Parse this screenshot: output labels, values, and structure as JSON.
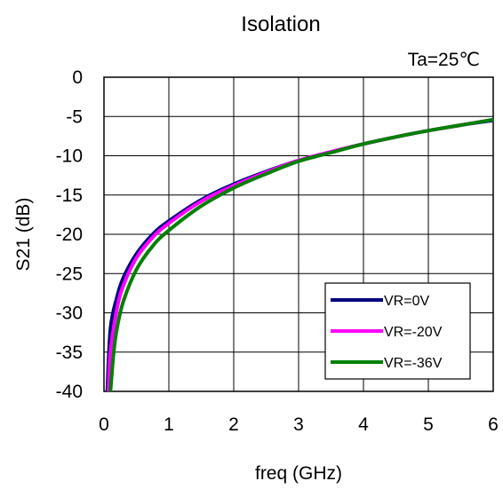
{
  "chart_data": {
    "type": "line",
    "title": "Isolation",
    "annotation": "Ta=25℃",
    "xlabel": "freq (GHz)",
    "ylabel": "S21 (dB)",
    "xlim": [
      0,
      6
    ],
    "ylim": [
      -40,
      0
    ],
    "xticks": [
      0,
      1,
      2,
      3,
      4,
      5,
      6
    ],
    "yticks": [
      0,
      -5,
      -10,
      -15,
      -20,
      -25,
      -30,
      -35,
      -40
    ],
    "grid": true,
    "legend_position": "bottom-right",
    "series": [
      {
        "name": "VR=0V",
        "color": "#000080",
        "x": [
          0.05,
          0.1,
          0.2,
          0.3,
          0.5,
          0.75,
          1.0,
          1.5,
          2.0,
          2.5,
          3.0,
          3.5,
          4.0,
          4.5,
          5.0,
          5.5,
          6.0
        ],
        "y": [
          -40,
          -32,
          -28,
          -25.5,
          -22.5,
          -20.0,
          -18.3,
          -15.6,
          -13.6,
          -12.0,
          -10.6,
          -9.5,
          -8.5,
          -7.6,
          -6.8,
          -6.1,
          -5.5
        ]
      },
      {
        "name": "VR=-20V",
        "color": "#ff00ff",
        "x": [
          0.07,
          0.1,
          0.2,
          0.3,
          0.5,
          0.75,
          1.0,
          1.5,
          2.0,
          2.5,
          3.0,
          3.5,
          4.0,
          4.5,
          5.0,
          5.5,
          6.0
        ],
        "y": [
          -40,
          -35,
          -29.5,
          -26.5,
          -23.0,
          -20.4,
          -18.6,
          -15.8,
          -13.8,
          -12.1,
          -10.6,
          -9.5,
          -8.5,
          -7.6,
          -6.8,
          -6.1,
          -5.4
        ]
      },
      {
        "name": "VR=-36V",
        "color": "#008000",
        "x": [
          0.1,
          0.15,
          0.2,
          0.3,
          0.5,
          0.75,
          1.0,
          1.5,
          2.0,
          2.5,
          3.0,
          3.5,
          4.0,
          4.5,
          5.0,
          5.5,
          6.0
        ],
        "y": [
          -40,
          -35,
          -32,
          -28.5,
          -24.5,
          -21.5,
          -19.5,
          -16.4,
          -14.1,
          -12.3,
          -10.7,
          -9.6,
          -8.5,
          -7.6,
          -6.8,
          -6.1,
          -5.4
        ]
      }
    ]
  }
}
